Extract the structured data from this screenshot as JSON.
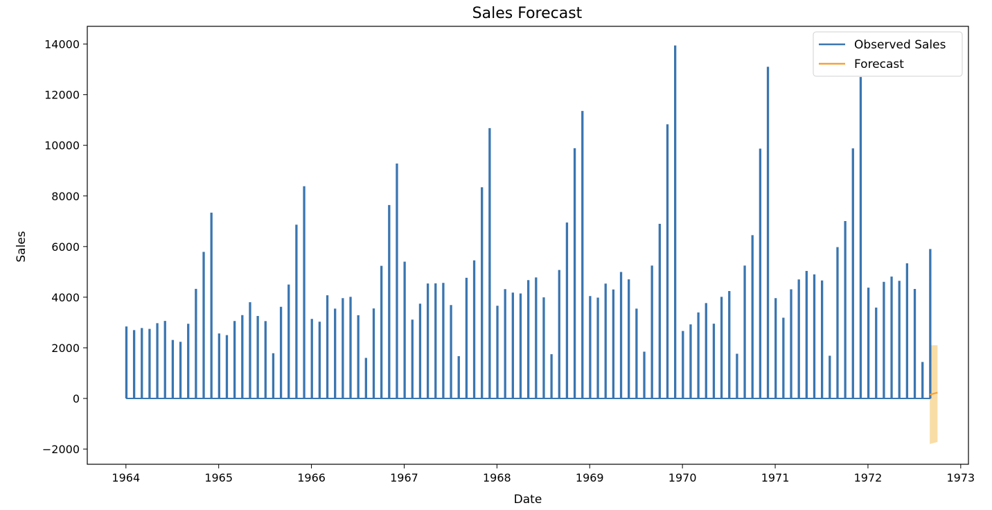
{
  "chart_data": {
    "type": "line",
    "title": "Sales Forecast",
    "xlabel": "Date",
    "ylabel": "Sales",
    "xlim": [
      "1963-08-01",
      "1973-02-01"
    ],
    "ylim": [
      -2600,
      14700
    ],
    "grid": false,
    "legend_position": "top-right",
    "x_ticks": [
      "1964",
      "1965",
      "1966",
      "1967",
      "1968",
      "1969",
      "1970",
      "1971",
      "1972",
      "1973"
    ],
    "y_ticks": [
      -2000,
      0,
      2000,
      4000,
      6000,
      8000,
      10000,
      12000,
      14000
    ],
    "series": [
      {
        "name": "Observed Sales",
        "color": "#3a75b0",
        "dates": [
          "1964-01",
          "1964-02",
          "1964-03",
          "1964-04",
          "1964-05",
          "1964-06",
          "1964-07",
          "1964-08",
          "1964-09",
          "1964-10",
          "1964-11",
          "1964-12",
          "1965-01",
          "1965-02",
          "1965-03",
          "1965-04",
          "1965-05",
          "1965-06",
          "1965-07",
          "1965-08",
          "1965-09",
          "1965-10",
          "1965-11",
          "1965-12",
          "1966-01",
          "1966-02",
          "1966-03",
          "1966-04",
          "1966-05",
          "1966-06",
          "1966-07",
          "1966-08",
          "1966-09",
          "1966-10",
          "1966-11",
          "1966-12",
          "1967-01",
          "1967-02",
          "1967-03",
          "1967-04",
          "1967-05",
          "1967-06",
          "1967-07",
          "1967-08",
          "1967-09",
          "1967-10",
          "1967-11",
          "1967-12",
          "1968-01",
          "1968-02",
          "1968-03",
          "1968-04",
          "1968-05",
          "1968-06",
          "1968-07",
          "1968-08",
          "1968-09",
          "1968-10",
          "1968-11",
          "1968-12",
          "1969-01",
          "1969-02",
          "1969-03",
          "1969-04",
          "1969-05",
          "1969-06",
          "1969-07",
          "1969-08",
          "1969-09",
          "1969-10",
          "1969-11",
          "1969-12",
          "1970-01",
          "1970-02",
          "1970-03",
          "1970-04",
          "1970-05",
          "1970-06",
          "1970-07",
          "1970-08",
          "1970-09",
          "1970-10",
          "1970-11",
          "1970-12",
          "1971-01",
          "1971-02",
          "1971-03",
          "1971-04",
          "1971-05",
          "1971-06",
          "1971-07",
          "1971-08",
          "1971-09",
          "1971-10",
          "1971-11",
          "1971-12",
          "1972-01",
          "1972-02",
          "1972-03",
          "1972-04",
          "1972-05",
          "1972-06",
          "1972-07",
          "1972-08",
          "1972-09"
        ],
        "values": [
          2815,
          2672,
          2755,
          2721,
          2946,
          3036,
          2282,
          2212,
          2922,
          4301,
          5764,
          7312,
          2541,
          2475,
          3031,
          3266,
          3776,
          3230,
          3028,
          1759,
          3595,
          4474,
          6838,
          8357,
          3113,
          3006,
          4047,
          3523,
          3937,
          3986,
          3260,
          1573,
          3528,
          5211,
          7614,
          9254,
          5375,
          3088,
          3718,
          4514,
          4520,
          4539,
          3663,
          1643,
          4739,
          5428,
          8314,
          10651,
          3633,
          4292,
          4154,
          4121,
          4647,
          4753,
          3965,
          1723,
          5048,
          6922,
          9858,
          11331,
          4016,
          3957,
          4510,
          4276,
          4968,
          4677,
          3523,
          1821,
          5222,
          6872,
          10803,
          13916,
          2639,
          2899,
          3370,
          3740,
          2927,
          3986,
          4217,
          1738,
          5221,
          6424,
          9842,
          13076,
          3934,
          3162,
          4286,
          4676,
          5010,
          4874,
          4633,
          1659,
          5951,
          6981,
          9851,
          12670,
          4348,
          3564,
          4577,
          4788,
          4618,
          5312,
          4298,
          1413,
          5877
        ]
      },
      {
        "name": "Forecast",
        "color": "#f5a137",
        "band_color": "#f8dda6",
        "dates": [
          "1972-09",
          "1972-10"
        ],
        "values": [
          150,
          230
        ],
        "lower": [
          -1800,
          -1720
        ],
        "upper": [
          2100,
          2100
        ]
      }
    ]
  }
}
